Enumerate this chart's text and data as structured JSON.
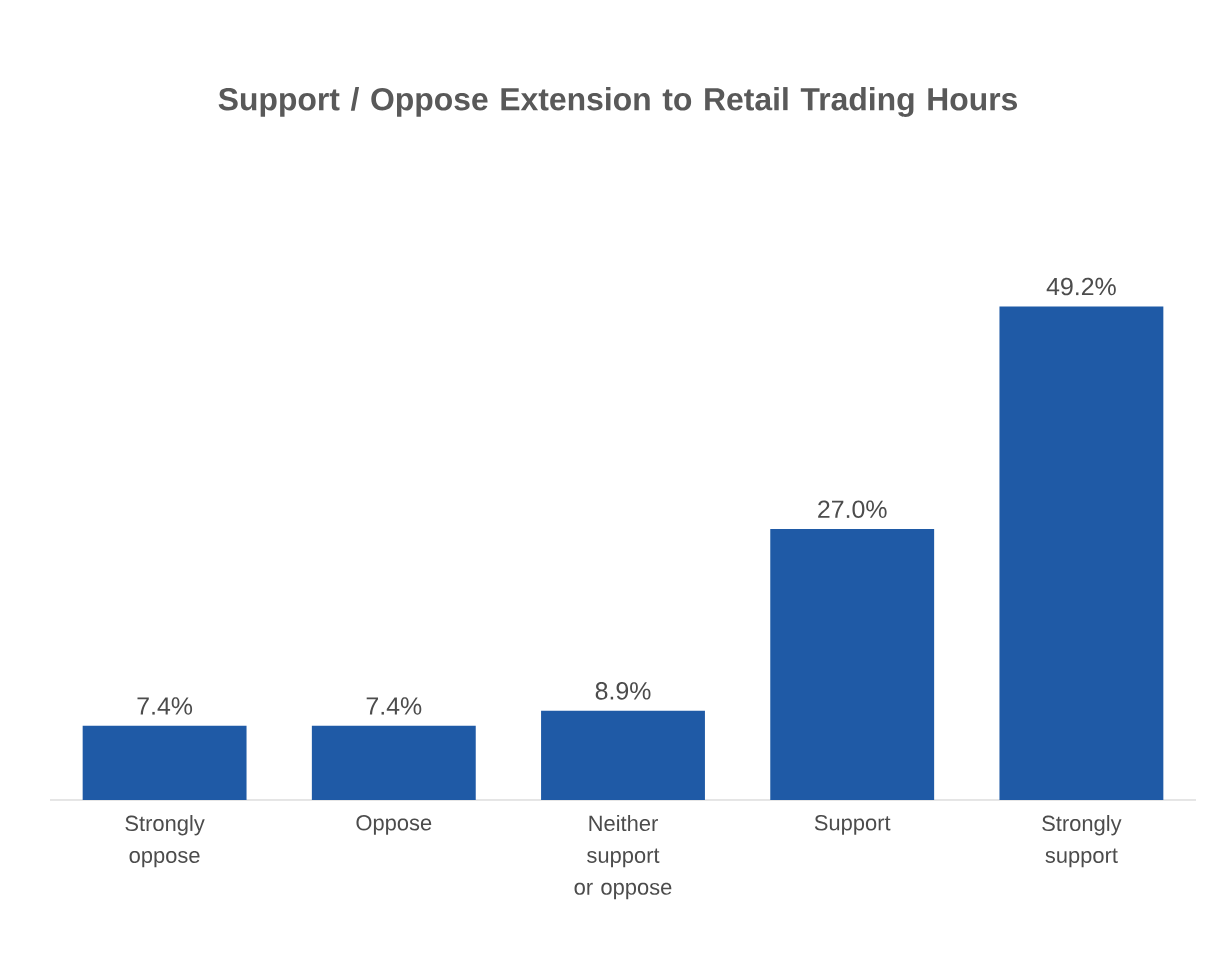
{
  "chart_data": {
    "type": "bar",
    "title": "Support / Oppose Extension to Retail Trading Hours",
    "categories": [
      "Strongly oppose",
      "Oppose",
      "Neither support or oppose",
      "Support",
      "Strongly support"
    ],
    "values": [
      7.4,
      7.4,
      8.9,
      27.0,
      49.2
    ],
    "value_labels": [
      "7.4%",
      "7.4%",
      "8.9%",
      "27.0%",
      "49.2%"
    ],
    "color": "#1f5aa6"
  }
}
